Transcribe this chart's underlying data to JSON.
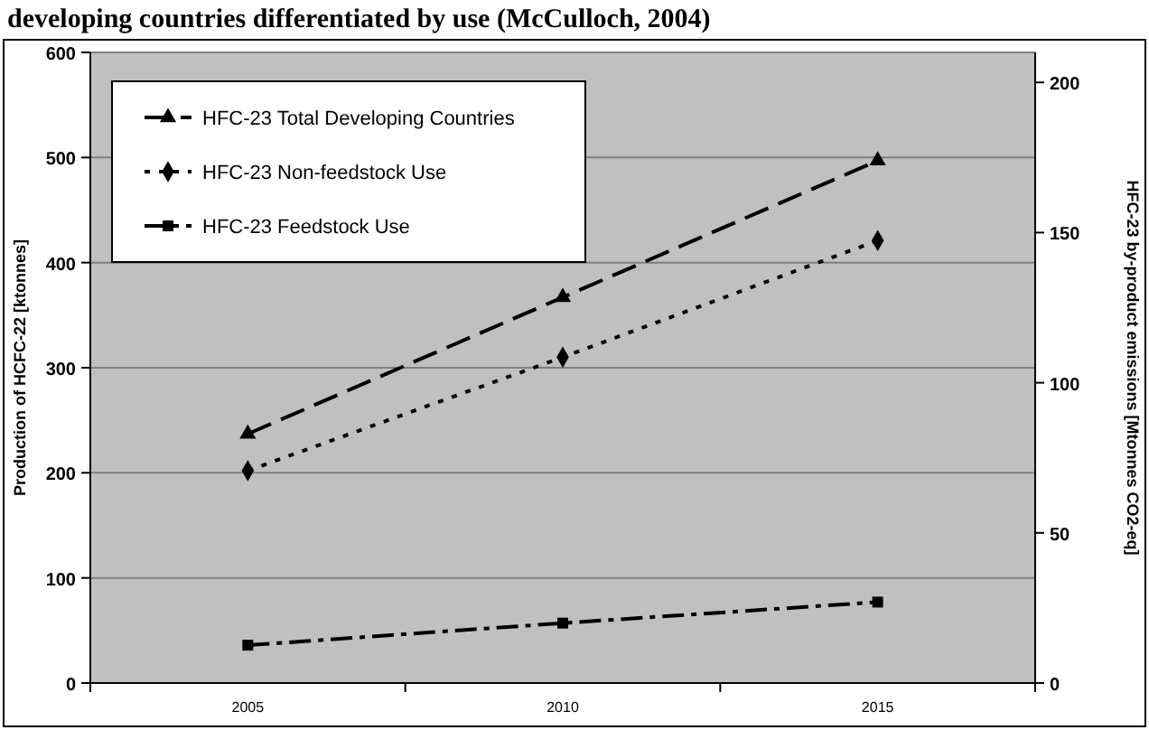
{
  "chart_data": {
    "type": "line",
    "title": "developing countries differentiated by use (McCulloch, 2004)",
    "ylabel": "Production of HCFC-22 [ktonnes]",
    "y2label": "HFC-23 by-product emissions [Mtonnes CO2-eq]",
    "categories": [
      "2005",
      "2010",
      "2015"
    ],
    "series": [
      {
        "name": "HFC-23 Total Developing Countries",
        "color": "#000000",
        "values": [
          237,
          367,
          497
        ],
        "marker": "triangle",
        "line_style": "dashed"
      },
      {
        "name": "HFC-23 Non-feedstock Use",
        "color": "#000000",
        "values": [
          202,
          310,
          421
        ],
        "marker": "diamond",
        "line_style": "dotted"
      },
      {
        "name": "HFC-23 Feedstock Use",
        "color": "#000000",
        "values": [
          36,
          57,
          77
        ],
        "marker": "square",
        "line_style": "dashed"
      }
    ],
    "ylim": [
      0,
      600
    ],
    "yticks": [
      0,
      100,
      200,
      300,
      400,
      500,
      600
    ],
    "y2lim": [
      0,
      210
    ],
    "y2ticks": [
      0,
      50,
      100,
      150,
      200
    ],
    "grid": "y",
    "legend": "top left"
  }
}
